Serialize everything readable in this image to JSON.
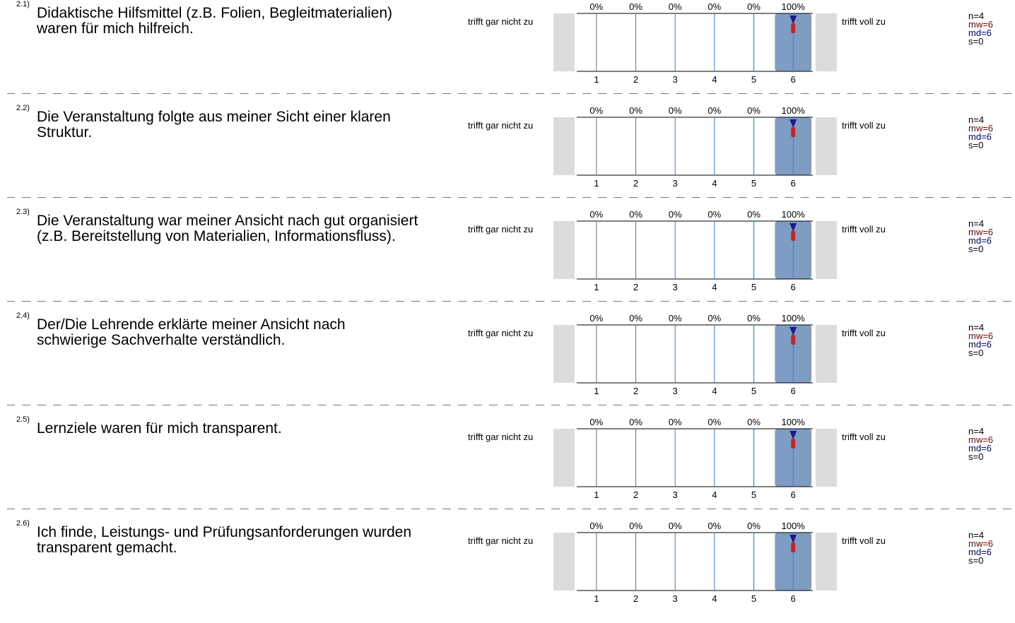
{
  "scale": {
    "left_label": "trifft gar nicht zu",
    "right_label": "trifft voll zu",
    "ticks": [
      "1",
      "2",
      "3",
      "4",
      "5",
      "6"
    ]
  },
  "colors": {
    "bar_fill": "#7f9cc3",
    "side_box": "#dcdcdc",
    "scale_line": "#3a7bc8",
    "median_marker": "#1a1a8c",
    "mean_marker": "#cc2222",
    "mw_text": "#8b0000",
    "md_text": "#00008b"
  },
  "items": [
    {
      "number": "2.1)",
      "text": "Didaktische Hilfsmittel (z.B. Folien, Begleitmaterialien) waren für mich hilfreich.",
      "n": "n=4",
      "mw": "mw=6",
      "md": "md=6",
      "s": "s=0"
    },
    {
      "number": "2.2)",
      "text": "Die Veranstaltung folgte aus meiner Sicht einer klaren Struktur.",
      "n": "n=4",
      "mw": "mw=6",
      "md": "md=6",
      "s": "s=0"
    },
    {
      "number": "2.3)",
      "text": "Die Veranstaltung war meiner Ansicht nach gut organisiert (z.B. Bereitstellung von Materialien, Informationsfluss).",
      "n": "n=4",
      "mw": "mw=6",
      "md": "md=6",
      "s": "s=0"
    },
    {
      "number": "2.4)",
      "text": "Der/Die Lehrende erklärte meiner Ansicht nach schwierige Sachverhalte verständlich.",
      "n": "n=4",
      "mw": "mw=6",
      "md": "md=6",
      "s": "s=0"
    },
    {
      "number": "2.5)",
      "text": "Lernziele waren für mich transparent.",
      "n": "n=4",
      "mw": "mw=6",
      "md": "md=6",
      "s": "s=0"
    },
    {
      "number": "2.6)",
      "text": "Ich finde, Leistungs- und Prüfungsanforderungen wurden transparent gemacht.",
      "n": "n=4",
      "mw": "mw=6",
      "md": "md=6",
      "s": "s=0"
    }
  ],
  "chart_data": [
    {
      "type": "bar",
      "categories": [
        "1",
        "2",
        "3",
        "4",
        "5",
        "6"
      ],
      "values": [
        0,
        0,
        0,
        0,
        0,
        100
      ],
      "labels": [
        "0%",
        "0%",
        "0%",
        "0%",
        "0%",
        "100%"
      ],
      "mean": 6,
      "median": 6
    },
    {
      "type": "bar",
      "categories": [
        "1",
        "2",
        "3",
        "4",
        "5",
        "6"
      ],
      "values": [
        0,
        0,
        0,
        0,
        0,
        100
      ],
      "labels": [
        "0%",
        "0%",
        "0%",
        "0%",
        "0%",
        "100%"
      ],
      "mean": 6,
      "median": 6
    },
    {
      "type": "bar",
      "categories": [
        "1",
        "2",
        "3",
        "4",
        "5",
        "6"
      ],
      "values": [
        0,
        0,
        0,
        0,
        0,
        100
      ],
      "labels": [
        "0%",
        "0%",
        "0%",
        "0%",
        "0%",
        "100%"
      ],
      "mean": 6,
      "median": 6
    },
    {
      "type": "bar",
      "categories": [
        "1",
        "2",
        "3",
        "4",
        "5",
        "6"
      ],
      "values": [
        0,
        0,
        0,
        0,
        0,
        100
      ],
      "labels": [
        "0%",
        "0%",
        "0%",
        "0%",
        "0%",
        "100%"
      ],
      "mean": 6,
      "median": 6
    },
    {
      "type": "bar",
      "categories": [
        "1",
        "2",
        "3",
        "4",
        "5",
        "6"
      ],
      "values": [
        0,
        0,
        0,
        0,
        0,
        100
      ],
      "labels": [
        "0%",
        "0%",
        "0%",
        "0%",
        "0%",
        "100%"
      ],
      "mean": 6,
      "median": 6
    },
    {
      "type": "bar",
      "categories": [
        "1",
        "2",
        "3",
        "4",
        "5",
        "6"
      ],
      "values": [
        0,
        0,
        0,
        0,
        0,
        100
      ],
      "labels": [
        "0%",
        "0%",
        "0%",
        "0%",
        "0%",
        "100%"
      ],
      "mean": 6,
      "median": 6
    }
  ]
}
